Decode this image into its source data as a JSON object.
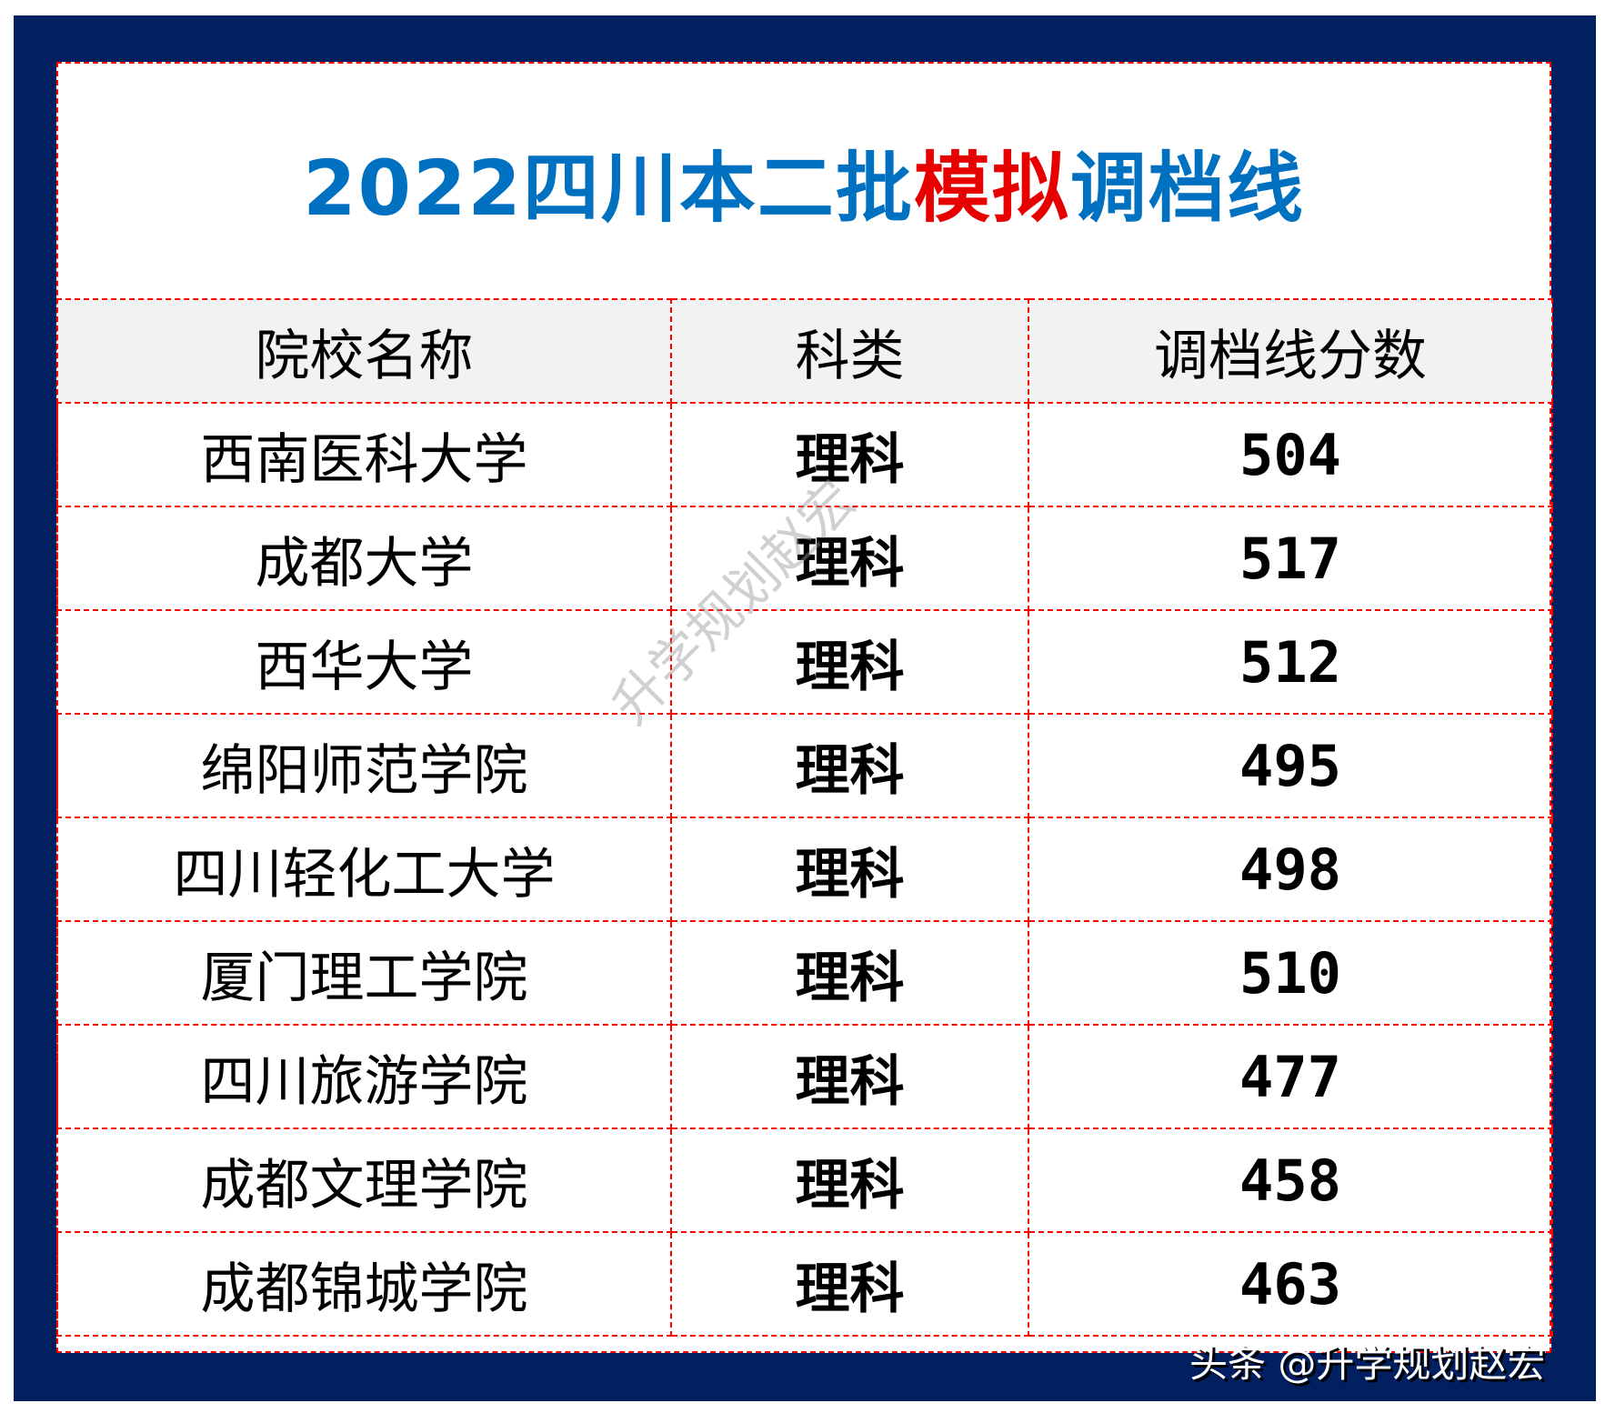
{
  "title": {
    "part1": "2022四川本二批",
    "highlight": "模拟",
    "part2": "调档线"
  },
  "colors": {
    "frame": "#022060",
    "title": "#0070c0",
    "highlight": "#e60000",
    "grid": "#ff0000",
    "header_bg": "#f2f2f2"
  },
  "table": {
    "headers": [
      "院校名称",
      "科类",
      "调档线分数"
    ],
    "rows": [
      {
        "school": "西南医科大学",
        "category": "理科",
        "score": "504"
      },
      {
        "school": "成都大学",
        "category": "理科",
        "score": "517"
      },
      {
        "school": "西华大学",
        "category": "理科",
        "score": "512"
      },
      {
        "school": "绵阳师范学院",
        "category": "理科",
        "score": "495"
      },
      {
        "school": "四川轻化工大学",
        "category": "理科",
        "score": "498"
      },
      {
        "school": "厦门理工学院",
        "category": "理科",
        "score": "510"
      },
      {
        "school": "四川旅游学院",
        "category": "理科",
        "score": "477"
      },
      {
        "school": "成都文理学院",
        "category": "理科",
        "score": "458"
      },
      {
        "school": "成都锦城学院",
        "category": "理科",
        "score": "463"
      }
    ]
  },
  "watermark": "升学规划赵宏",
  "footer": "头条 @升学规划赵宏"
}
